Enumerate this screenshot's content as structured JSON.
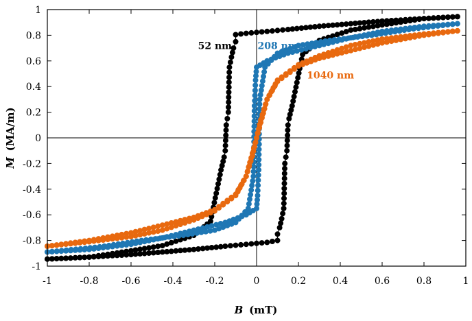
{
  "chart_data": {
    "type": "line",
    "xlabel_var": "B",
    "xlabel_unit": "(mT)",
    "ylabel_var": "M",
    "ylabel_unit": "(MA/m)",
    "xlim": [
      -1,
      1
    ],
    "ylim": [
      -1,
      1
    ],
    "x_ticks": [
      -1,
      -0.8,
      -0.6,
      -0.4,
      -0.2,
      0,
      0.2,
      0.4,
      0.6,
      0.8,
      1
    ],
    "x_tick_labels": [
      "-1",
      "-0.8",
      "-0.6",
      "-0.4",
      "-0.2",
      "0",
      "0.2",
      "0.4",
      "0.6",
      "0.8",
      "1"
    ],
    "y_ticks": [
      -1,
      -0.8,
      -0.6,
      -0.4,
      -0.2,
      0,
      0.2,
      0.4,
      0.6,
      0.8,
      1
    ],
    "y_tick_labels": [
      "-1",
      "-0.8",
      "-0.6",
      "-0.4",
      "-0.2",
      "0",
      "0.2",
      "0.4",
      "0.6",
      "0.8",
      "1"
    ],
    "zero_lines": true,
    "series": [
      {
        "name": "52 nm",
        "color": "#000000",
        "branches": [
          [
            [
              0.96,
              0.945
            ],
            [
              0.8,
              0.93
            ],
            [
              0.6,
              0.91
            ],
            [
              0.45,
              0.89
            ],
            [
              0.3,
              0.87
            ],
            [
              0.15,
              0.845
            ],
            [
              0.05,
              0.83
            ],
            [
              -0.05,
              0.815
            ],
            [
              -0.1,
              0.805
            ],
            [
              -0.1,
              0.75
            ],
            [
              -0.11,
              0.7
            ],
            [
              -0.12,
              0.63
            ],
            [
              -0.13,
              0.55
            ],
            [
              -0.135,
              0.2
            ],
            [
              -0.14,
              0.15
            ],
            [
              -0.145,
              0.1
            ],
            [
              -0.15,
              -0.1
            ],
            [
              -0.155,
              -0.15
            ],
            [
              -0.17,
              -0.25
            ],
            [
              -0.22,
              -0.65
            ],
            [
              -0.3,
              -0.76
            ],
            [
              -0.45,
              -0.84
            ],
            [
              -0.6,
              -0.88
            ],
            [
              -0.8,
              -0.93
            ],
            [
              -1.0,
              -0.945
            ]
          ],
          [
            [
              -1.0,
              -0.945
            ],
            [
              -0.8,
              -0.93
            ],
            [
              -0.6,
              -0.91
            ],
            [
              -0.45,
              -0.89
            ],
            [
              -0.3,
              -0.87
            ],
            [
              -0.15,
              -0.845
            ],
            [
              -0.05,
              -0.83
            ],
            [
              0.05,
              -0.815
            ],
            [
              0.1,
              -0.8
            ],
            [
              0.1,
              -0.75
            ],
            [
              0.11,
              -0.7
            ],
            [
              0.12,
              -0.63
            ],
            [
              0.13,
              -0.55
            ],
            [
              0.135,
              -0.2
            ],
            [
              0.14,
              -0.15
            ],
            [
              0.145,
              -0.1
            ],
            [
              0.15,
              0.1
            ],
            [
              0.155,
              0.15
            ],
            [
              0.17,
              0.25
            ],
            [
              0.22,
              0.65
            ],
            [
              0.3,
              0.76
            ],
            [
              0.45,
              0.84
            ],
            [
              0.6,
              0.88
            ],
            [
              0.8,
              0.93
            ],
            [
              0.96,
              0.945
            ]
          ]
        ]
      },
      {
        "name": "208 nm",
        "color": "#1f77b4",
        "branches": [
          [
            [
              0.96,
              0.89
            ],
            [
              0.8,
              0.87
            ],
            [
              0.6,
              0.83
            ],
            [
              0.45,
              0.78
            ],
            [
              0.3,
              0.72
            ],
            [
              0.15,
              0.66
            ],
            [
              0.05,
              0.6
            ],
            [
              0.0,
              0.55
            ],
            [
              -0.005,
              0.45
            ],
            [
              -0.01,
              0.25
            ],
            [
              -0.012,
              0.05
            ],
            [
              -0.013,
              -0.15
            ],
            [
              -0.015,
              -0.3
            ],
            [
              -0.04,
              -0.55
            ],
            [
              -0.1,
              -0.66
            ],
            [
              -0.2,
              -0.72
            ],
            [
              -0.35,
              -0.76
            ],
            [
              -0.55,
              -0.8
            ],
            [
              -0.75,
              -0.85
            ],
            [
              -1.0,
              -0.89
            ]
          ],
          [
            [
              -1.0,
              -0.89
            ],
            [
              -0.8,
              -0.87
            ],
            [
              -0.6,
              -0.83
            ],
            [
              -0.45,
              -0.78
            ],
            [
              -0.3,
              -0.72
            ],
            [
              -0.15,
              -0.66
            ],
            [
              -0.05,
              -0.6
            ],
            [
              0.0,
              -0.55
            ],
            [
              0.005,
              -0.45
            ],
            [
              0.01,
              -0.25
            ],
            [
              0.012,
              -0.05
            ],
            [
              0.013,
              0.15
            ],
            [
              0.015,
              0.3
            ],
            [
              0.04,
              0.55
            ],
            [
              0.1,
              0.66
            ],
            [
              0.2,
              0.72
            ],
            [
              0.35,
              0.76
            ],
            [
              0.55,
              0.8
            ],
            [
              0.75,
              0.85
            ],
            [
              0.96,
              0.89
            ]
          ]
        ]
      },
      {
        "name": "1040 nm",
        "color": "#e8690f",
        "branches": [
          [
            [
              0.96,
              0.835
            ],
            [
              0.8,
              0.81
            ],
            [
              0.6,
              0.77
            ],
            [
              0.45,
              0.72
            ],
            [
              0.3,
              0.64
            ],
            [
              0.2,
              0.57
            ],
            [
              0.1,
              0.45
            ],
            [
              0.05,
              0.3
            ],
            [
              0.02,
              0.12
            ],
            [
              0.0,
              0.0
            ],
            [
              -0.02,
              -0.14
            ],
            [
              -0.05,
              -0.3
            ],
            [
              -0.1,
              -0.44
            ],
            [
              -0.2,
              -0.56
            ],
            [
              -0.3,
              -0.62
            ],
            [
              -0.45,
              -0.68
            ],
            [
              -0.6,
              -0.74
            ],
            [
              -0.8,
              -0.8
            ],
            [
              -1.0,
              -0.845
            ]
          ],
          [
            [
              -1.0,
              -0.845
            ],
            [
              -0.8,
              -0.81
            ],
            [
              -0.6,
              -0.77
            ],
            [
              -0.45,
              -0.72
            ],
            [
              -0.3,
              -0.64
            ],
            [
              -0.2,
              -0.57
            ],
            [
              -0.1,
              -0.45
            ],
            [
              -0.05,
              -0.3
            ],
            [
              -0.02,
              -0.12
            ],
            [
              0.0,
              0.0
            ],
            [
              0.02,
              0.14
            ],
            [
              0.05,
              0.3
            ],
            [
              0.1,
              0.44
            ],
            [
              0.2,
              0.56
            ],
            [
              0.3,
              0.62
            ],
            [
              0.45,
              0.68
            ],
            [
              0.6,
              0.74
            ],
            [
              0.8,
              0.8
            ],
            [
              0.96,
              0.835
            ]
          ]
        ]
      }
    ]
  }
}
